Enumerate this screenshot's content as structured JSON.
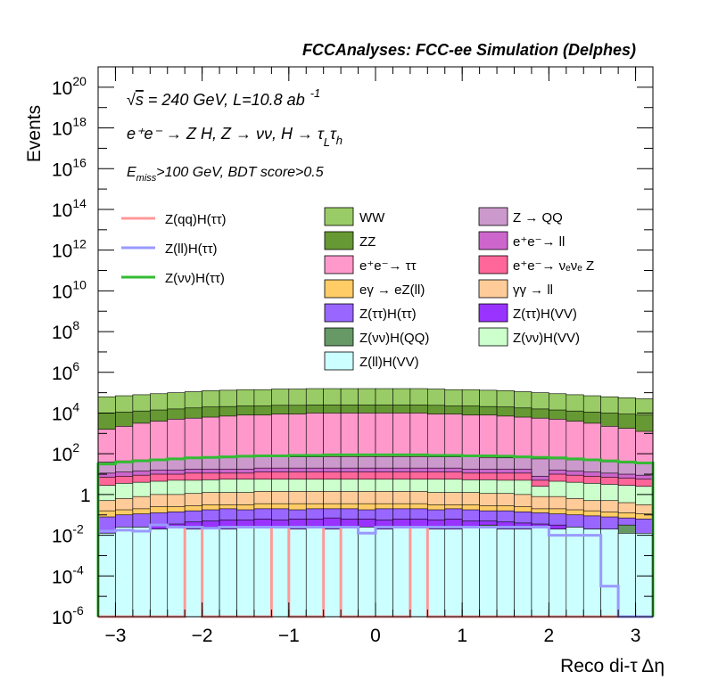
{
  "chart_data": {
    "type": "stacked-histogram",
    "title": "FCCAnalyses: FCC-ee Simulation (Delphes)",
    "xlabel": "Reco di-τ Δη",
    "ylabel": "Events",
    "xlim": [
      -3.2,
      3.2
    ],
    "ylim": [
      1e-06,
      1e+21
    ],
    "yscale": "log",
    "grid": false,
    "legend_placement": "top-middle",
    "x_ticks": [
      "−3",
      "−2",
      "−1",
      "0",
      "1",
      "2",
      "3"
    ],
    "y_tick_labels": [
      {
        "base": "10",
        "exp": "20",
        "value": 1e+20
      },
      {
        "base": "10",
        "exp": "18",
        "value": 1e+18
      },
      {
        "base": "10",
        "exp": "16",
        "value": 1e+16
      },
      {
        "base": "10",
        "exp": "14",
        "value": 100000000000000.0
      },
      {
        "base": "10",
        "exp": "12",
        "value": 1000000000000.0
      },
      {
        "base": "10",
        "exp": "10",
        "value": 10000000000.0
      },
      {
        "base": "10",
        "exp": "8",
        "value": 100000000.0
      },
      {
        "base": "10",
        "exp": "6",
        "value": 1000000.0
      },
      {
        "base": "10",
        "exp": "4",
        "value": 10000.0
      },
      {
        "base": "10",
        "exp": "2",
        "value": 100.0
      },
      {
        "base": "1",
        "exp": "",
        "value": 1
      },
      {
        "base": "10",
        "exp": "-2",
        "value": 0.01
      },
      {
        "base": "10",
        "exp": "-4",
        "value": 0.0001
      },
      {
        "base": "10",
        "exp": "-6",
        "value": 1e-06
      }
    ],
    "annotations": {
      "line1": {
        "sqrt": "√",
        "s": "s",
        "rest": " = 240 GeV, L=10.8 ab",
        "sup": "-1"
      },
      "line2": {
        "text": "e⁺e⁻ → Z H, Z → νν, H → τ",
        "sub1": "L",
        "mid": "τ",
        "sub2": "h"
      },
      "line3": {
        "base": "E",
        "sub": "miss",
        "rest": ">100 GeV, BDT score>0.5"
      }
    },
    "stack_order_bottom_to_top": [
      "Z(ll)H(VV)",
      "Z(νν)H(QQ)",
      "Z(ττ)H(VV)",
      "Z(ττ)H(ττ)",
      "eγ → eZ(ll)",
      "γγ → ll",
      "Z(νν)H(VV)",
      "e⁺e⁻ → νₑνₑ Z",
      "e⁺e⁻ → ll",
      "Z → QQ",
      "e⁺e⁻ → ττ",
      "ZZ",
      "WW"
    ],
    "bins": {
      "start": -3.2,
      "width": 0.2,
      "count": 32
    },
    "stack": [
      {
        "name": "WW",
        "color": "#99cc66",
        "top": [
          4.8,
          4.85,
          4.9,
          4.95,
          5.0,
          5.05,
          5.1,
          5.12,
          5.15,
          5.15,
          5.18,
          5.18,
          5.2,
          5.2,
          5.2,
          5.2,
          5.2,
          5.2,
          5.2,
          5.18,
          5.15,
          5.15,
          5.12,
          5.1,
          5.05,
          5.0,
          4.95,
          4.9,
          4.85,
          4.8,
          4.75,
          4.7
        ]
      },
      {
        "name": "ZZ",
        "color": "#669933",
        "top": [
          4.0,
          4.05,
          4.1,
          4.15,
          4.2,
          4.25,
          4.3,
          4.32,
          4.35,
          4.35,
          4.38,
          4.38,
          4.4,
          4.4,
          4.4,
          4.4,
          4.4,
          4.4,
          4.4,
          4.38,
          4.35,
          4.35,
          4.32,
          4.3,
          4.25,
          4.2,
          4.15,
          4.1,
          4.05,
          4.0,
          3.95,
          3.9
        ]
      },
      {
        "name": "e⁺e⁻ → ττ",
        "color": "#ff99cc",
        "top": [
          3.2,
          3.35,
          3.5,
          3.6,
          3.7,
          3.75,
          3.8,
          3.85,
          3.9,
          3.9,
          3.95,
          3.95,
          4.0,
          4.0,
          4.0,
          4.0,
          4.0,
          4.0,
          4.0,
          3.95,
          3.95,
          3.9,
          3.9,
          3.85,
          3.8,
          3.75,
          3.7,
          3.6,
          3.5,
          3.35,
          3.25,
          3.1
        ]
      },
      {
        "name": "Z → QQ",
        "color": "#cc99cc",
        "top": [
          1.6,
          1.65,
          1.7,
          1.75,
          1.75,
          1.8,
          1.8,
          1.8,
          1.85,
          1.85,
          1.85,
          1.85,
          1.85,
          1.85,
          1.85,
          1.85,
          1.85,
          1.85,
          1.85,
          1.85,
          1.85,
          1.85,
          1.8,
          1.8,
          1.8,
          1.75,
          1.75,
          1.7,
          1.65,
          1.6,
          1.55,
          1.5
        ]
      },
      {
        "name": "e⁺e⁻ → ll",
        "color": "#cc66cc",
        "top": [
          1.05,
          1.1,
          1.15,
          1.2,
          1.2,
          1.25,
          1.25,
          1.25,
          1.25,
          1.3,
          1.3,
          1.3,
          1.3,
          1.3,
          1.3,
          1.3,
          1.3,
          1.3,
          1.3,
          1.3,
          1.3,
          1.25,
          1.25,
          1.25,
          1.25,
          0.9,
          1.2,
          1.15,
          1.1,
          1.05,
          1.0,
          0.95
        ]
      },
      {
        "name": "e⁺e⁻ → νₑνₑ Z",
        "color": "#ff6699",
        "top": [
          0.85,
          0.9,
          0.95,
          1.0,
          1.0,
          1.05,
          1.05,
          1.05,
          1.05,
          1.1,
          1.1,
          1.1,
          1.1,
          1.1,
          1.1,
          1.1,
          1.1,
          1.1,
          1.1,
          1.1,
          1.1,
          1.05,
          1.05,
          1.05,
          1.05,
          0.7,
          1.0,
          0.95,
          0.9,
          0.85,
          0.8,
          0.75
        ]
      },
      {
        "name": "Z(νν)H(VV)",
        "color": "#ccffcc",
        "top": [
          0.45,
          0.55,
          0.6,
          0.65,
          0.7,
          0.7,
          0.72,
          0.75,
          0.75,
          0.75,
          0.75,
          0.75,
          0.75,
          0.75,
          0.75,
          0.75,
          0.75,
          0.75,
          0.75,
          0.75,
          0.75,
          0.72,
          0.72,
          0.7,
          0.7,
          0.4,
          0.65,
          0.6,
          0.55,
          0.5,
          0.45,
          0.4
        ]
      },
      {
        "name": "γγ → ll",
        "color": "#ffcc99",
        "top": [
          -0.3,
          -0.2,
          -0.1,
          0.0,
          0.0,
          0.05,
          0.1,
          0.1,
          0.1,
          0.15,
          0.15,
          0.15,
          0.15,
          0.15,
          0.15,
          0.15,
          0.15,
          0.15,
          0.15,
          0.1,
          0.1,
          0.1,
          0.05,
          0.05,
          0.0,
          -0.1,
          -0.1,
          -0.2,
          -0.3,
          -0.3,
          -0.4,
          -0.5
        ]
      },
      {
        "name": "eγ → eZ(ll)",
        "color": "#ffcc66",
        "top": [
          -0.8,
          -0.75,
          -0.7,
          -0.6,
          -0.6,
          -0.55,
          -0.5,
          -0.5,
          -0.5,
          -0.45,
          -0.45,
          -0.45,
          -0.45,
          -0.45,
          -0.45,
          -0.45,
          -0.45,
          -0.45,
          -0.45,
          -0.5,
          -0.5,
          -0.5,
          -0.55,
          -0.55,
          -0.6,
          -0.7,
          -0.7,
          -0.75,
          -0.8,
          -0.85,
          -0.9,
          -0.95
        ]
      },
      {
        "name": "Z(ττ)H(ττ)",
        "color": "#9966ff",
        "top": [
          -1.1,
          -1.0,
          -0.95,
          -0.9,
          -0.85,
          -0.8,
          -0.75,
          -0.7,
          -0.75,
          -0.7,
          -0.7,
          -0.75,
          -0.7,
          -0.7,
          -0.7,
          -0.75,
          -0.7,
          -0.7,
          -0.7,
          -0.75,
          -0.7,
          -0.75,
          -0.8,
          -0.8,
          -0.85,
          -0.9,
          -0.95,
          -1.0,
          -1.05,
          -1.1,
          -1.15,
          -1.2
        ]
      },
      {
        "name": "Z(ττ)H(VV)",
        "color": "#9933ff",
        "top": [
          -1.8,
          -1.7,
          -1.6,
          -1.5,
          -1.45,
          -1.35,
          -1.3,
          -1.25,
          -1.25,
          -1.2,
          -1.25,
          -1.2,
          -1.2,
          -1.15,
          -1.2,
          -1.2,
          -1.25,
          -1.2,
          -1.2,
          -1.25,
          -1.2,
          -1.3,
          -1.3,
          -1.35,
          -1.4,
          -1.45,
          -1.5,
          -1.6,
          -1.7,
          -1.75,
          -1.8,
          -1.9
        ]
      },
      {
        "name": "Z(νν)H(QQ)",
        "color": "#669966",
        "top": [
          -6,
          -6,
          -6,
          -6,
          -6,
          -6,
          -6,
          -6,
          -6,
          -6,
          -6,
          -6,
          -6,
          -6,
          -6,
          -6,
          -6,
          -6,
          -6,
          -6,
          -6,
          -6,
          -1.5,
          -6,
          -6,
          -6,
          -6,
          -6,
          -6,
          -6,
          -1.5,
          -6
        ]
      },
      {
        "name": "Z(ll)H(VV)",
        "color": "#ccffff",
        "top": [
          -1.9,
          -1.6,
          -1.6,
          -1.7,
          -1.6,
          -1.7,
          -1.6,
          -1.7,
          -1.6,
          -1.6,
          -1.6,
          -1.7,
          -1.6,
          -1.7,
          -1.6,
          -1.6,
          -1.7,
          -1.6,
          -1.6,
          -1.7,
          -1.7,
          -1.6,
          -1.6,
          -1.7,
          -1.7,
          -1.6,
          -1.7,
          -1.6,
          -1.7,
          -1.7,
          -1.9,
          -1.9
        ]
      }
    ],
    "signals": [
      {
        "name": "Z(qq)H(ττ)",
        "color": "#ff9999",
        "log10": [
          -6,
          -6,
          -6,
          -6,
          -6,
          -1.6,
          -6,
          -6,
          -6,
          -6,
          -1.6,
          -6,
          -6,
          -1.6,
          -6,
          -6,
          -6,
          -6,
          -1.6,
          -6,
          -6,
          -6,
          -6,
          -6,
          -6,
          -6,
          -6,
          -6,
          -6,
          -6,
          -6,
          -6
        ]
      },
      {
        "name": "Z(ll)H(ττ)",
        "color": "#9999ff",
        "log10": [
          -1.8,
          -1.75,
          -1.8,
          -1.5,
          -1.6,
          -1.6,
          -1.65,
          -1.6,
          -1.6,
          -1.6,
          -1.6,
          -1.6,
          -1.6,
          -1.6,
          -1.6,
          -1.9,
          -1.6,
          -1.6,
          -1.6,
          -1.6,
          -1.6,
          -1.6,
          -1.6,
          -1.6,
          -1.6,
          -1.6,
          -2.0,
          -2.0,
          -2.0,
          -4.5,
          -6,
          -6
        ]
      },
      {
        "name": "Z(νν)H(ττ)",
        "color": "#33bb33",
        "log10": [
          1.5,
          1.6,
          1.65,
          1.7,
          1.75,
          1.8,
          1.82,
          1.85,
          1.88,
          1.9,
          1.9,
          1.92,
          1.92,
          1.95,
          1.95,
          1.95,
          1.95,
          1.95,
          1.95,
          1.92,
          1.92,
          1.9,
          1.9,
          1.88,
          1.85,
          1.82,
          1.8,
          1.75,
          1.7,
          1.65,
          1.6,
          1.55
        ]
      }
    ],
    "legend_left": [
      "Z(qq)H(ττ)",
      "Z(ll)H(ττ)",
      "Z(νν)H(ττ)"
    ],
    "legend_mid": [
      "WW",
      "ZZ",
      "e⁺e⁻→ ττ",
      "eγ → eZ(ll)",
      "Z(ττ)H(ττ)",
      "Z(νν)H(QQ)",
      "Z(ll)H(VV)"
    ],
    "legend_right": [
      "Z → QQ",
      "e⁺e⁻→ ll",
      "e⁺e⁻→ νₑνₑ Z",
      "γγ → ll",
      "Z(ττ)H(VV)",
      "Z(νν)H(VV)"
    ]
  }
}
